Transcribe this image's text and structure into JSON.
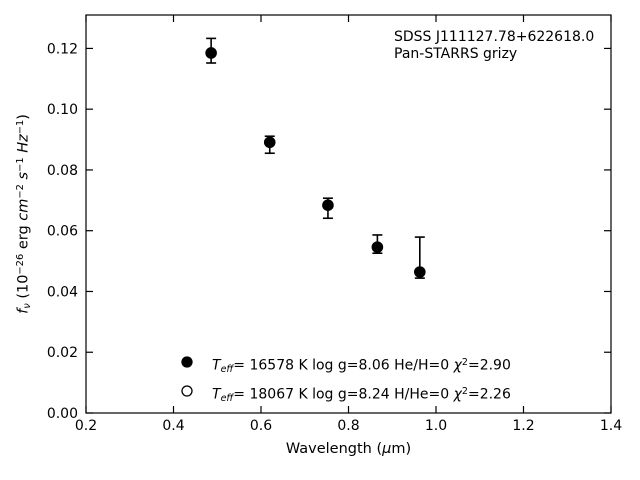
{
  "figure": {
    "background_color": "#ffffff",
    "axis_color": "#000000",
    "marker_color": "#000000",
    "annotation": {
      "line1": "SDSS J111127.78+622618.0",
      "line2": "Pan-STARRS grizy"
    }
  },
  "chart_data": {
    "type": "scatter",
    "title": "",
    "grid": false,
    "tick_direction": "in",
    "xlabel_text": "Wavelength (μm)",
    "xlabel_segments": [
      {
        "t": "Wavelength (",
        "s": "n"
      },
      {
        "t": "μ",
        "s": "i"
      },
      {
        "t": "m)",
        "s": "n"
      }
    ],
    "ylabel_text": "f_ν (10^−26 erg cm^−2 s^−1 Hz^−1)",
    "ylabel_segments": [
      {
        "t": "f",
        "s": "i"
      },
      {
        "t": "ν",
        "s": "subi"
      },
      {
        "t": " (10",
        "s": "n"
      },
      {
        "t": "−26",
        "s": "sup"
      },
      {
        "t": " erg ",
        "s": "n"
      },
      {
        "t": "cm",
        "s": "i"
      },
      {
        "t": "−2",
        "s": "sup"
      },
      {
        "t": " ",
        "s": "n"
      },
      {
        "t": "s",
        "s": "i"
      },
      {
        "t": "−1",
        "s": "sup"
      },
      {
        "t": " ",
        "s": "n"
      },
      {
        "t": "Hz",
        "s": "i"
      },
      {
        "t": "−1",
        "s": "sup"
      },
      {
        "t": ")",
        "s": "n"
      }
    ],
    "xlim": [
      0.2,
      1.4
    ],
    "ylim": [
      0.0,
      0.131
    ],
    "xticks": [
      {
        "v": 0.2,
        "label": "0.2"
      },
      {
        "v": 0.4,
        "label": "0.4"
      },
      {
        "v": 0.6,
        "label": "0.6"
      },
      {
        "v": 0.8,
        "label": "0.8"
      },
      {
        "v": 1.0,
        "label": "1.0"
      },
      {
        "v": 1.2,
        "label": "1.2"
      },
      {
        "v": 1.4,
        "label": "1.4"
      }
    ],
    "yticks": [
      {
        "v": 0.0,
        "label": "0.00"
      },
      {
        "v": 0.02,
        "label": "0.02"
      },
      {
        "v": 0.04,
        "label": "0.04"
      },
      {
        "v": 0.06,
        "label": "0.06"
      },
      {
        "v": 0.08,
        "label": "0.08"
      },
      {
        "v": 0.1,
        "label": "0.10"
      },
      {
        "v": 0.12,
        "label": "0.12"
      }
    ],
    "series": [
      {
        "name": "Pan-STARRS grizy photometry",
        "marker": "filled-circle",
        "points": [
          {
            "x": 0.486,
            "y": 0.1185,
            "y_err_low": 0.1152,
            "y_err_high": 0.1233
          },
          {
            "x": 0.62,
            "y": 0.0891,
            "y_err_low": 0.0855,
            "y_err_high": 0.0911
          },
          {
            "x": 0.753,
            "y": 0.0684,
            "y_err_low": 0.0641,
            "y_err_high": 0.0707
          },
          {
            "x": 0.866,
            "y": 0.0546,
            "y_err_low": 0.0526,
            "y_err_high": 0.0586
          },
          {
            "x": 0.963,
            "y": 0.0464,
            "y_err_low": 0.0444,
            "y_err_high": 0.0579
          }
        ]
      }
    ],
    "legend": {
      "position": "lower-left-inside",
      "entries": [
        {
          "marker": "filled-circle",
          "text": "T_eff= 16578 K  log g=8.06  He/H=0  χ²=2.90",
          "segments": [
            {
              "t": "T",
              "s": "i"
            },
            {
              "t": "eff",
              "s": "subi"
            },
            {
              "t": "= 16578 K  log g=8.06  He/H=0  ",
              "s": "n"
            },
            {
              "t": "χ",
              "s": "i"
            },
            {
              "t": "2",
              "s": "sup"
            },
            {
              "t": "=2.90",
              "s": "n"
            }
          ]
        },
        {
          "marker": "open-circle",
          "text": "T_eff= 18067 K  log g=8.24  H/He=0  χ²=2.26",
          "segments": [
            {
              "t": "T",
              "s": "i"
            },
            {
              "t": "eff",
              "s": "subi"
            },
            {
              "t": "= 18067 K  log g=8.24  H/He=0  ",
              "s": "n"
            },
            {
              "t": "χ",
              "s": "i"
            },
            {
              "t": "2",
              "s": "sup"
            },
            {
              "t": "=2.26",
              "s": "n"
            }
          ]
        }
      ]
    }
  }
}
